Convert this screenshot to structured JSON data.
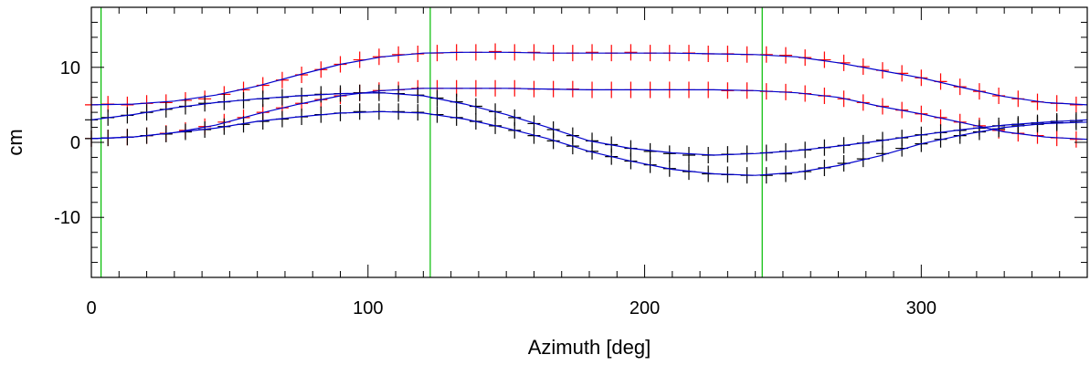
{
  "chart_data": {
    "type": "scatter",
    "title": "",
    "xlabel": "Azimuth [deg]",
    "ylabel": "cm",
    "xlim": [
      0,
      360
    ],
    "ylim": [
      -18,
      18
    ],
    "x_ticks": [
      0,
      100,
      200,
      300
    ],
    "x_tick_labels": [
      "0",
      "100",
      "200",
      "300"
    ],
    "y_ticks": [
      -10,
      0,
      10
    ],
    "y_tick_labels": [
      "-10",
      "0",
      "10"
    ],
    "grid": false,
    "legend": "none",
    "vertical_lines": [
      3.5,
      122.5,
      242.5
    ],
    "colors": {
      "red_series": "#ff0000",
      "black_series": "#000000",
      "fit": "#0000cc",
      "vertical_line": "#00bb00"
    },
    "series": [
      {
        "color": "#ff0000",
        "marker": "plus",
        "x": [
          0,
          6,
          13,
          20,
          27,
          34,
          41,
          48,
          55,
          62,
          69,
          76,
          83,
          90,
          97,
          104,
          111,
          118,
          125,
          132,
          139,
          146,
          153,
          160,
          167,
          174,
          181,
          188,
          195,
          202,
          209,
          216,
          223,
          230,
          237,
          244,
          251,
          258,
          265,
          272,
          279,
          286,
          293,
          300,
          307,
          314,
          321,
          328,
          335,
          342,
          349,
          356
        ],
        "y": [
          5.0,
          5.1,
          5.0,
          5.2,
          5.3,
          5.6,
          5.8,
          6.4,
          7.0,
          7.6,
          8.3,
          9.0,
          9.7,
          10.4,
          11.0,
          11.4,
          11.7,
          11.8,
          11.9,
          12.0,
          12.0,
          12.1,
          12.0,
          12.0,
          11.9,
          11.9,
          12.0,
          11.9,
          12.0,
          11.9,
          11.9,
          11.9,
          11.8,
          11.8,
          11.7,
          11.7,
          11.6,
          11.3,
          11.0,
          10.6,
          10.1,
          9.6,
          9.2,
          8.6,
          8.1,
          7.4,
          6.8,
          6.2,
          5.8,
          5.4,
          5.2,
          5.0
        ]
      },
      {
        "color": "#ff0000",
        "marker": "plus",
        "x": [
          0,
          6,
          13,
          20,
          27,
          34,
          41,
          48,
          55,
          62,
          69,
          76,
          83,
          90,
          97,
          104,
          111,
          118,
          125,
          132,
          139,
          146,
          153,
          160,
          167,
          174,
          181,
          188,
          195,
          202,
          209,
          216,
          223,
          230,
          237,
          244,
          251,
          258,
          265,
          272,
          279,
          286,
          293,
          300,
          307,
          314,
          321,
          328,
          335,
          342,
          349,
          356
        ],
        "y": [
          0.5,
          0.6,
          0.7,
          0.9,
          1.2,
          1.6,
          2.1,
          2.7,
          3.3,
          4.0,
          4.6,
          5.2,
          5.7,
          6.2,
          6.6,
          6.9,
          7.0,
          7.2,
          7.2,
          7.2,
          7.2,
          7.2,
          7.2,
          7.1,
          7.1,
          7.1,
          7.0,
          7.0,
          7.0,
          7.0,
          7.0,
          7.0,
          7.0,
          6.9,
          6.9,
          6.8,
          6.7,
          6.5,
          6.2,
          5.8,
          5.3,
          4.8,
          4.3,
          3.8,
          3.3,
          2.7,
          2.2,
          1.6,
          1.2,
          0.9,
          0.6,
          0.4
        ]
      },
      {
        "color": "#000000",
        "marker": "plus",
        "x": [
          0,
          6,
          13,
          20,
          27,
          34,
          41,
          48,
          55,
          62,
          69,
          76,
          83,
          90,
          97,
          104,
          111,
          118,
          125,
          132,
          139,
          146,
          153,
          160,
          167,
          174,
          181,
          188,
          195,
          202,
          209,
          216,
          223,
          230,
          237,
          244,
          251,
          258,
          265,
          272,
          279,
          286,
          293,
          300,
          307,
          314,
          321,
          328,
          335,
          342,
          349,
          356
        ],
        "y": [
          3.0,
          3.3,
          3.6,
          4.0,
          4.4,
          4.8,
          5.2,
          5.4,
          5.6,
          5.8,
          6.0,
          6.2,
          6.4,
          6.5,
          6.6,
          6.6,
          6.5,
          6.3,
          5.9,
          5.4,
          4.8,
          4.1,
          3.3,
          2.5,
          1.7,
          0.9,
          0.2,
          -0.3,
          -0.8,
          -1.2,
          -1.5,
          -1.7,
          -1.7,
          -1.6,
          -1.5,
          -1.4,
          -1.2,
          -1.0,
          -0.7,
          -0.4,
          -0.1,
          0.3,
          0.6,
          1.0,
          1.3,
          1.6,
          1.9,
          2.2,
          2.4,
          2.6,
          2.8,
          2.9
        ]
      },
      {
        "color": "#000000",
        "marker": "plus",
        "x": [
          0,
          6,
          13,
          20,
          27,
          34,
          41,
          48,
          55,
          62,
          69,
          76,
          83,
          90,
          97,
          104,
          111,
          118,
          125,
          132,
          139,
          146,
          153,
          160,
          167,
          174,
          181,
          188,
          195,
          202,
          209,
          216,
          223,
          230,
          237,
          244,
          251,
          258,
          265,
          272,
          279,
          286,
          293,
          300,
          307,
          314,
          321,
          328,
          335,
          342,
          349,
          356
        ],
        "y": [
          0.5,
          0.6,
          0.7,
          0.9,
          1.1,
          1.4,
          1.7,
          2.1,
          2.4,
          2.8,
          3.1,
          3.4,
          3.7,
          3.9,
          4.1,
          4.1,
          4.1,
          4.0,
          3.7,
          3.3,
          2.8,
          2.2,
          1.6,
          0.9,
          0.2,
          -0.5,
          -1.2,
          -1.9,
          -2.5,
          -3.0,
          -3.5,
          -3.9,
          -4.2,
          -4.3,
          -4.4,
          -4.4,
          -4.2,
          -3.9,
          -3.4,
          -2.8,
          -2.2,
          -1.5,
          -0.8,
          -0.2,
          0.4,
          0.9,
          1.4,
          1.8,
          2.2,
          2.4,
          2.6,
          2.7
        ]
      }
    ],
    "fit_curves": [
      {
        "color": "#0000cc",
        "x": [
          0,
          15,
          30,
          45,
          60,
          75,
          90,
          105,
          120,
          135,
          150,
          165,
          180,
          195,
          210,
          225,
          240,
          255,
          270,
          285,
          300,
          315,
          330,
          345,
          360
        ],
        "y": [
          5.0,
          5.1,
          5.5,
          6.3,
          7.5,
          9.0,
          10.4,
          11.4,
          11.9,
          12.0,
          12.0,
          11.9,
          11.9,
          11.9,
          11.9,
          11.8,
          11.7,
          11.4,
          10.6,
          9.6,
          8.6,
          7.3,
          6.1,
          5.3,
          5.0
        ]
      },
      {
        "color": "#0000cc",
        "x": [
          0,
          15,
          30,
          45,
          60,
          75,
          90,
          105,
          120,
          135,
          150,
          165,
          180,
          195,
          210,
          225,
          240,
          255,
          270,
          285,
          300,
          315,
          330,
          345,
          360
        ],
        "y": [
          0.5,
          0.7,
          1.3,
          2.3,
          3.8,
          5.1,
          6.2,
          6.9,
          7.2,
          7.2,
          7.2,
          7.1,
          7.0,
          7.0,
          7.0,
          7.0,
          6.9,
          6.6,
          6.0,
          4.8,
          3.8,
          2.6,
          1.4,
          0.7,
          0.4
        ]
      },
      {
        "color": "#0000cc",
        "x": [
          0,
          15,
          30,
          45,
          60,
          75,
          90,
          105,
          120,
          135,
          150,
          165,
          180,
          195,
          210,
          225,
          240,
          255,
          270,
          285,
          300,
          315,
          330,
          345,
          360
        ],
        "y": [
          3.0,
          3.7,
          4.6,
          5.3,
          5.8,
          6.2,
          6.5,
          6.6,
          6.2,
          5.1,
          3.7,
          2.0,
          0.2,
          -0.8,
          -1.4,
          -1.7,
          -1.5,
          -1.1,
          -0.5,
          0.2,
          1.0,
          1.7,
          2.3,
          2.7,
          3.0
        ]
      },
      {
        "color": "#0000cc",
        "x": [
          0,
          15,
          30,
          45,
          60,
          75,
          90,
          105,
          120,
          135,
          150,
          165,
          180,
          195,
          210,
          225,
          240,
          255,
          270,
          285,
          300,
          315,
          330,
          345,
          360
        ],
        "y": [
          0.5,
          0.7,
          1.3,
          1.9,
          2.8,
          3.4,
          3.9,
          4.1,
          3.9,
          3.1,
          1.9,
          0.5,
          -1.2,
          -2.5,
          -3.6,
          -4.2,
          -4.4,
          -4.0,
          -3.1,
          -1.8,
          -0.2,
          1.0,
          2.0,
          2.5,
          2.7
        ]
      }
    ]
  }
}
